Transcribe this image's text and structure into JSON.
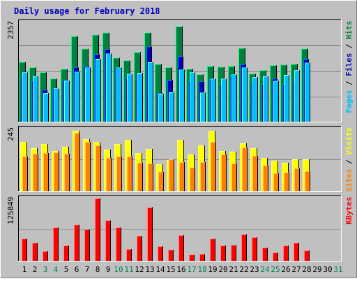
{
  "title": "Daily usage for February 2018",
  "colors": {
    "background": "#c0c0c0",
    "title_text": "#0000c0",
    "grid": "#8c8c8c",
    "hits": "#008040",
    "hits_light": "#00ff80",
    "files": "#0000c0",
    "files_light": "#0080ff",
    "pages": "#00c0ff",
    "pages_light": "#80ffff",
    "visits": "#ffff00",
    "visits_light": "#ffff80",
    "sites": "#ff8000",
    "sites_light": "#ffc080",
    "kbytes": "#ff0000",
    "kbytes_light": "#ff8080",
    "weekend_day": "#00805c",
    "weekday_day": "#000000"
  },
  "chart_data": [
    {
      "type": "bar",
      "title": "Daily usage for February 2018",
      "ylabel_max": "2357",
      "ylim": [
        0,
        2357
      ],
      "grid": true,
      "legend": "right",
      "legend_items": [
        {
          "label": "Hits",
          "color_key": "hits"
        },
        {
          "label": "Files",
          "color_key": "files"
        },
        {
          "label": "Pages",
          "color_key": "pages"
        }
      ],
      "categories": [
        "1",
        "2",
        "3",
        "4",
        "5",
        "6",
        "7",
        "8",
        "9",
        "10",
        "11",
        "12",
        "13",
        "14",
        "15",
        "16",
        "17",
        "18",
        "19",
        "20",
        "21",
        "22",
        "23",
        "24",
        "25",
        "26",
        "27",
        "28",
        "29",
        "30",
        "31"
      ],
      "series": [
        {
          "name": "Hits",
          "color_key": "hits",
          "values": [
            1414,
            1281,
            1170,
            1007,
            1251,
            2017,
            1714,
            2043,
            2098,
            1499,
            1443,
            1630,
            2098,
            1366,
            1273,
            2247,
            1251,
            1105,
            1305,
            1285,
            1310,
            1733,
            1126,
            1218,
            1329,
            1336,
            1359,
            1724,
            0,
            0,
            0
          ]
        },
        {
          "name": "Files",
          "color_key": "files",
          "values": [
            1103,
            963,
            756,
            785,
            985,
            1272,
            1305,
            1592,
            1710,
            1276,
            1010,
            1124,
            1770,
            663,
            978,
            1536,
            956,
            954,
            1005,
            858,
            1075,
            1363,
            925,
            879,
            1012,
            890,
            963,
            1470,
            0,
            0,
            0
          ]
        },
        {
          "name": "Pages",
          "color_key": "pages",
          "values": [
            1170,
            1073,
            663,
            785,
            960,
            1185,
            1270,
            1470,
            1604,
            1276,
            1124,
            1146,
            1402,
            652,
            706,
            1220,
            1155,
            680,
            1023,
            1010,
            1110,
            1270,
            1047,
            1085,
            970,
            1094,
            1216,
            1390,
            0,
            0,
            0
          ]
        }
      ]
    },
    {
      "type": "bar",
      "ylabel_max": "245",
      "ylim": [
        0,
        245
      ],
      "grid": true,
      "legend": "right",
      "legend_items": [
        {
          "label": "Visits",
          "color_key": "visits"
        },
        {
          "label": "Sites",
          "color_key": "sites"
        }
      ],
      "categories": [
        "1",
        "2",
        "3",
        "4",
        "5",
        "6",
        "7",
        "8",
        "9",
        "10",
        "11",
        "12",
        "13",
        "14",
        "15",
        "16",
        "17",
        "18",
        "19",
        "20",
        "21",
        "22",
        "23",
        "24",
        "25",
        "26",
        "27",
        "28",
        "29",
        "30",
        "31"
      ],
      "series": [
        {
          "name": "Visits",
          "color_key": "visits",
          "values": [
            192,
            168,
            183,
            157,
            173,
            234,
            201,
            190,
            161,
            184,
            198,
            149,
            164,
            104,
            120,
            198,
            143,
            178,
            233,
            155,
            153,
            185,
            168,
            128,
            119,
            111,
            124,
            124,
            0,
            0,
            0
          ]
        },
        {
          "name": "Sites",
          "color_key": "sites",
          "values": [
            135,
            146,
            147,
            151,
            145,
            225,
            191,
            178,
            129,
            135,
            134,
            110,
            109,
            76,
            123,
            114,
            91,
            114,
            191,
            143,
            107,
            169,
            137,
            99,
            70,
            72,
            88,
            79,
            0,
            0,
            0
          ]
        }
      ]
    },
    {
      "type": "bar",
      "ylabel_max": "125849",
      "ylim": [
        0,
        125849
      ],
      "grid": true,
      "legend": "right",
      "legend_items": [
        {
          "label": "KBytes",
          "color_key": "kbytes"
        }
      ],
      "categories": [
        "1",
        "2",
        "3",
        "4",
        "5",
        "6",
        "7",
        "8",
        "9",
        "10",
        "11",
        "12",
        "13",
        "14",
        "15",
        "16",
        "17",
        "18",
        "19",
        "20",
        "21",
        "22",
        "23",
        "24",
        "25",
        "26",
        "27",
        "28",
        "29",
        "30",
        "31"
      ],
      "series": [
        {
          "name": "KBytes",
          "color_key": "kbytes",
          "values": [
            44200,
            35700,
            18700,
            66300,
            30600,
            71400,
            62900,
            124200,
            79900,
            66300,
            23800,
            49300,
            107100,
            28900,
            22100,
            50900,
            11900,
            13600,
            44200,
            29800,
            32300,
            52700,
            47600,
            26400,
            17000,
            29800,
            35700,
            20400,
            0,
            0,
            0
          ]
        }
      ]
    }
  ],
  "x_axis": {
    "day_labels": [
      "1",
      "2",
      "3",
      "4",
      "5",
      "6",
      "7",
      "8",
      "9",
      "10",
      "11",
      "12",
      "13",
      "14",
      "15",
      "16",
      "17",
      "18",
      "19",
      "20",
      "21",
      "22",
      "23",
      "24",
      "25",
      "26",
      "27",
      "28",
      "29",
      "30",
      "31"
    ],
    "weekend_days": [
      3,
      4,
      10,
      11,
      17,
      18,
      24,
      25,
      31
    ]
  }
}
